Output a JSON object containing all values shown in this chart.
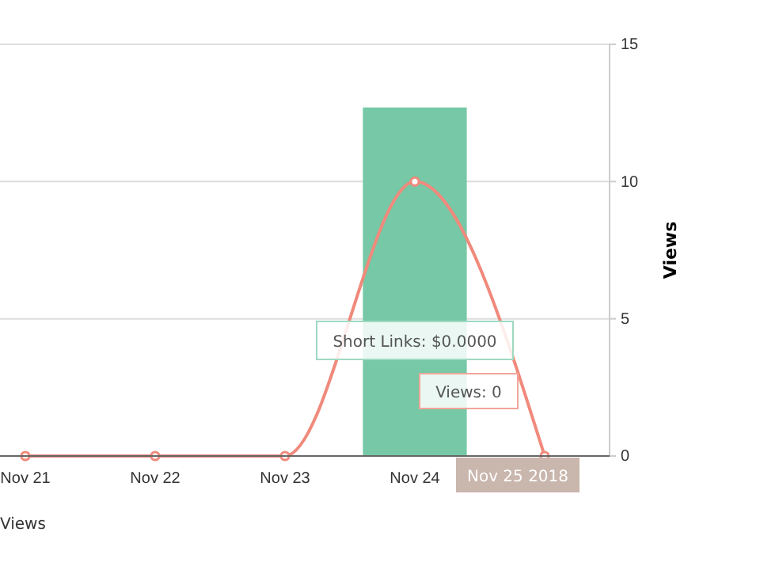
{
  "chart_data": {
    "type": "bar",
    "categories": [
      "Nov 21",
      "Nov 22",
      "Nov 23",
      "Nov 24",
      null
    ],
    "series": [
      {
        "color": "#76c8a6",
        "axis": "y2",
        "values": [
          null,
          null,
          null,
          12.7,
          null
        ]
      },
      {
        "type": "line",
        "name": "Views",
        "color": "#f08a7c",
        "axis": "y2",
        "values": [
          0,
          0,
          0,
          10,
          0
        ]
      }
    ],
    "y2label": "Views",
    "y2lim": [
      0,
      15
    ],
    "y2ticks": [
      0,
      5,
      10,
      15
    ],
    "grid": "y",
    "legend": "bottom left",
    "marker": "circle",
    "line_style": "solid",
    "annotations": [
      "Short Links: $0.0000",
      "Views: 0",
      "Nov 25 2018"
    ]
  }
}
